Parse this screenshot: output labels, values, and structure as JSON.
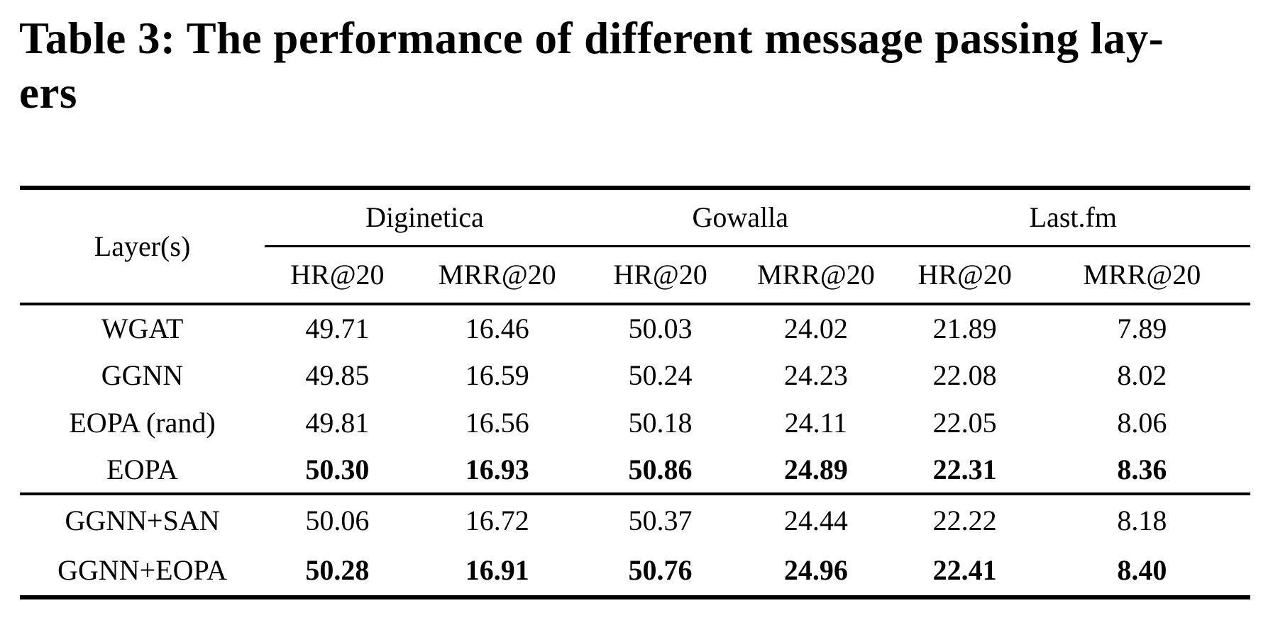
{
  "caption": {
    "line1": "Table 3: The performance of different message passing lay-",
    "line2": "ers",
    "full_title": "Table 3: The performance of different message passing layers"
  },
  "colors": {
    "text": "#000000",
    "background": "#ffffff",
    "rule": "#000000"
  },
  "table": {
    "corner_label": "Layer(s)",
    "groups": [
      {
        "label": "Diginetica"
      },
      {
        "label": "Gowalla"
      },
      {
        "label": "Last.fm"
      }
    ],
    "metric_labels": [
      "HR@20",
      "MRR@20",
      "HR@20",
      "MRR@20",
      "HR@20",
      "MRR@20"
    ],
    "sections": [
      {
        "rows": [
          {
            "label": "WGAT",
            "bold": false,
            "values": [
              "49.71",
              "16.46",
              "50.03",
              "24.02",
              "21.89",
              "7.89"
            ]
          },
          {
            "label": "GGNN",
            "bold": false,
            "values": [
              "49.85",
              "16.59",
              "50.24",
              "24.23",
              "22.08",
              "8.02"
            ]
          },
          {
            "label": "EOPA (rand)",
            "bold": false,
            "values": [
              "49.81",
              "16.56",
              "50.18",
              "24.11",
              "22.05",
              "8.06"
            ]
          },
          {
            "label": "EOPA",
            "bold": true,
            "values": [
              "50.30",
              "16.93",
              "50.86",
              "24.89",
              "22.31",
              "8.36"
            ]
          }
        ]
      },
      {
        "rows": [
          {
            "label": "GGNN+SAN",
            "bold": false,
            "values": [
              "50.06",
              "16.72",
              "50.37",
              "24.44",
              "22.22",
              "8.18"
            ]
          },
          {
            "label": "GGNN+EOPA",
            "bold": true,
            "values": [
              "50.28",
              "16.91",
              "50.76",
              "24.96",
              "22.41",
              "8.40"
            ]
          }
        ]
      }
    ]
  }
}
